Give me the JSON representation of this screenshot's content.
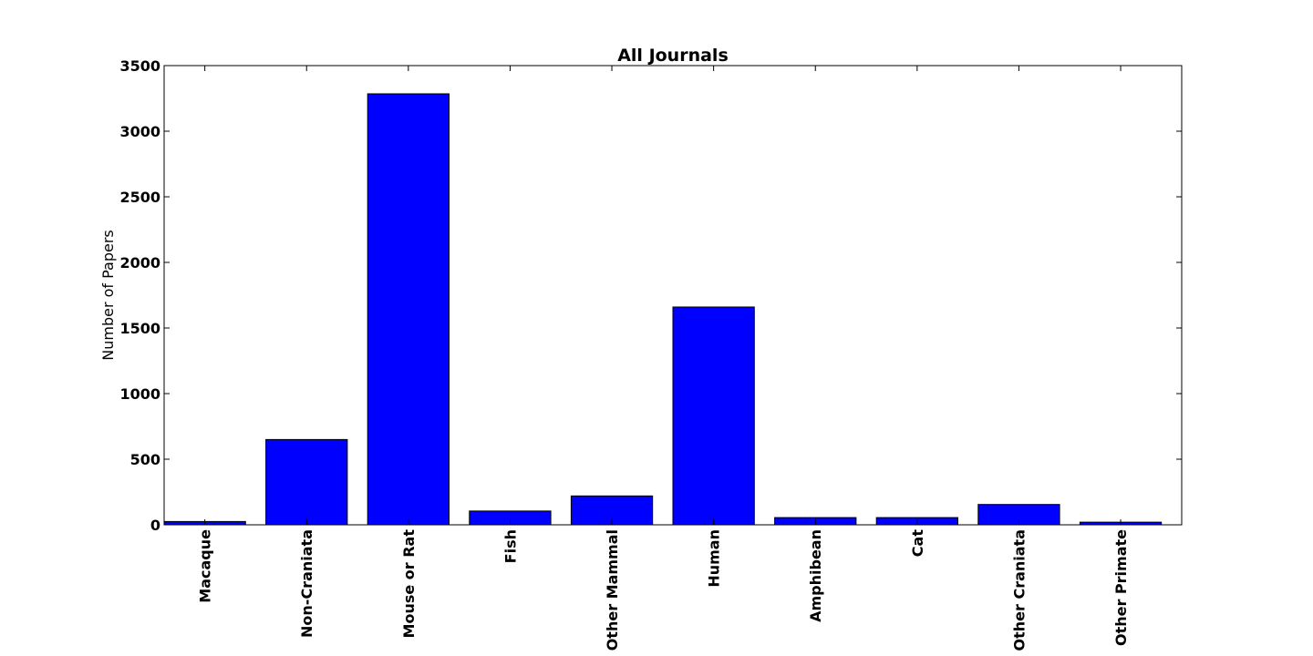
{
  "chart_data": {
    "type": "bar",
    "title": "All Journals",
    "xlabel": "",
    "ylabel": "Number of Papers",
    "categories": [
      "Macaque",
      "Non-Craniata",
      "Mouse or Rat",
      "Fish",
      "Other Mammal",
      "Human",
      "Amphibean",
      "Cat",
      "Other Craniata",
      "Other Primate"
    ],
    "values": [
      25,
      650,
      3285,
      105,
      220,
      1660,
      55,
      55,
      155,
      20
    ],
    "ylim": [
      0,
      3500
    ],
    "yticks": [
      0,
      500,
      1000,
      1500,
      2000,
      2500,
      3000,
      3500
    ],
    "ytick_labels": [
      "0",
      "500",
      "1000",
      "1500",
      "2000",
      "2500",
      "3000",
      "3500"
    ],
    "bar_color": "#0000ff",
    "edge_color": "#000000",
    "grid": false,
    "legend": "none"
  }
}
